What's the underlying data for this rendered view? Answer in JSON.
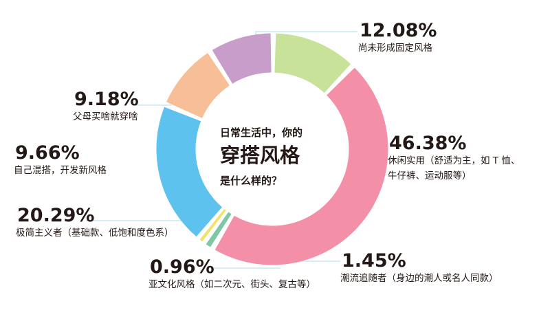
{
  "chart_data": {
    "type": "pie",
    "variant": "donut",
    "title": [
      "日常生活中，你的",
      "穿搭风格",
      "是什么样的？"
    ],
    "slices": [
      {
        "label": "尚未形成固定风格",
        "value": 12.08,
        "value_label": "12.08%",
        "color": "#c9e29a"
      },
      {
        "label": "休闲实用（舒适为主，如 T 恤、牛仔裤、运动服等）",
        "value": 46.38,
        "value_label": "46.38%",
        "color": "#f48fa8"
      },
      {
        "label": "潮流追随者（身边的潮人或名人同款）",
        "value": 1.45,
        "value_label": "1.45%",
        "color": "#7ec8a6"
      },
      {
        "label": "亚文化风格（如二次元、街头、复古等）",
        "value": 0.96,
        "value_label": "0.96%",
        "color": "#efe36a"
      },
      {
        "label": "极简主义者（基础款、低饱和度色系）",
        "value": 20.29,
        "value_label": "20.29%",
        "color": "#5ec2ee"
      },
      {
        "label": "自己混搭，开发新风格",
        "value": 9.66,
        "value_label": "9.66%",
        "color": "#f6bf98"
      },
      {
        "label": "父母买啥就穿啥",
        "value": 9.18,
        "value_label": "9.18%",
        "color": "#c99dca"
      }
    ],
    "label_lines": [
      [
        "尚未形成固定风格"
      ],
      [
        "休闲实用（舒适为主，如 T 恤、",
        "牛仔裤、运动服等）"
      ],
      [
        "潮流追随者（身边的潮人或名人同款）"
      ],
      [
        "亚文化风格（如二次元、街头、复古等）"
      ],
      [
        "极简主义者（基础款、低饱和度色系）"
      ],
      [
        "自己混搭，开发新风格"
      ],
      [
        "父母买啥就穿啥"
      ]
    ],
    "leader_color": "#8fd3e8"
  }
}
